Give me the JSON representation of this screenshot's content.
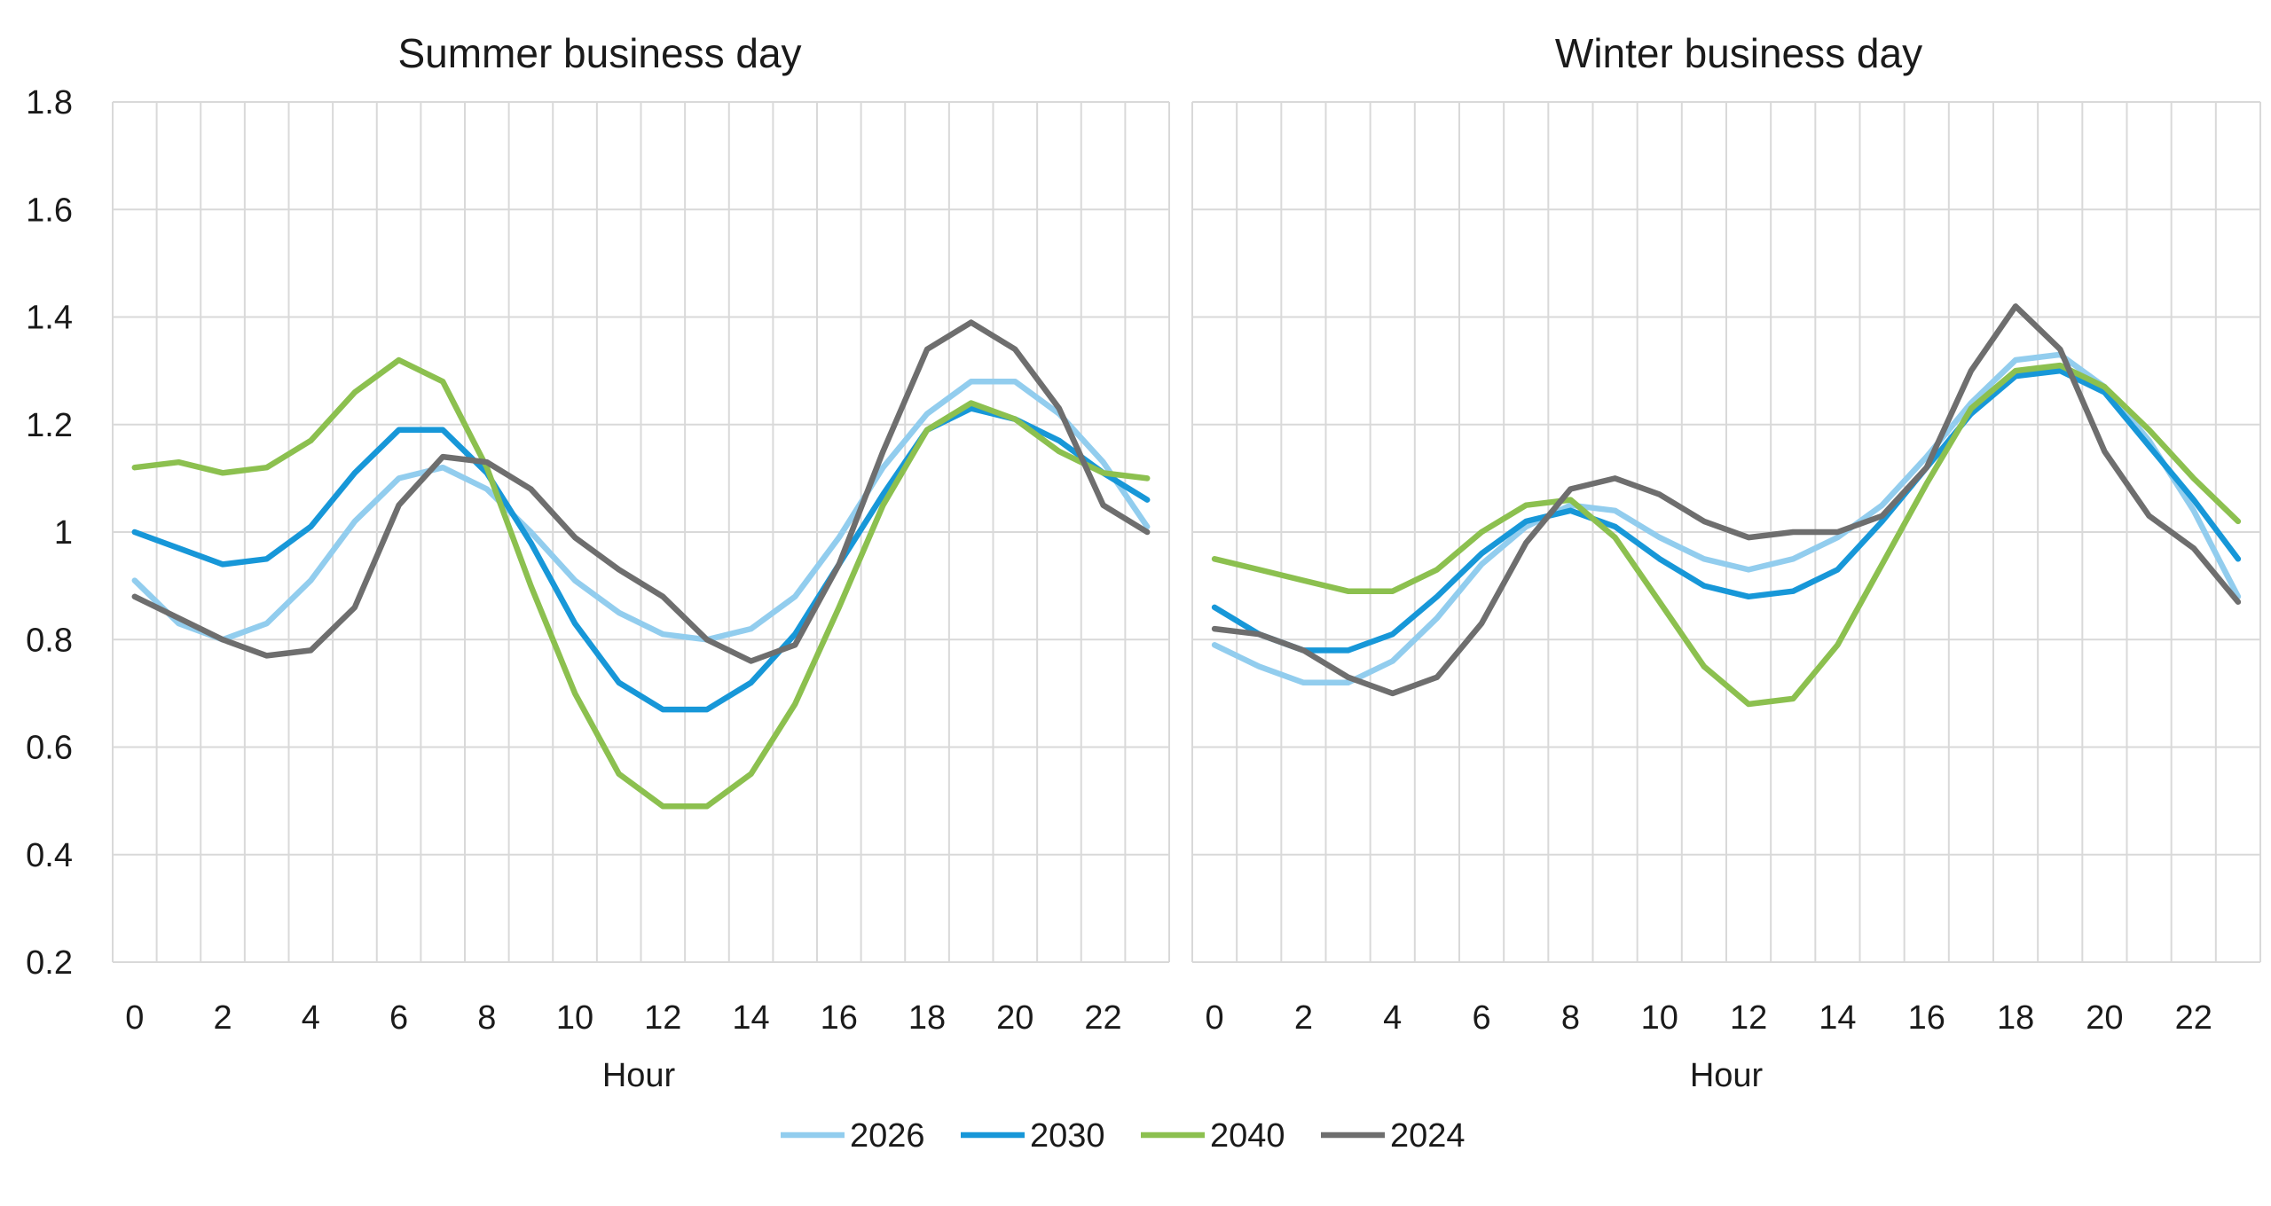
{
  "chart_data": [
    {
      "type": "line",
      "title": "Summer business day",
      "xlabel": "Hour",
      "ylabel": "",
      "xlim": [
        0,
        23
      ],
      "ylim": [
        0.2,
        1.8
      ],
      "y_ticks": [
        0.2,
        0.4,
        0.6,
        0.8,
        1.0,
        1.2,
        1.4,
        1.6,
        1.8
      ],
      "y_tick_labels": [
        "0.2",
        "0.4",
        "0.6",
        "0.8",
        "1",
        "1.2",
        "1.4",
        "1.6",
        "1.8"
      ],
      "x_tick_labels": [
        "0",
        "2",
        "4",
        "6",
        "8",
        "10",
        "12",
        "14",
        "16",
        "18",
        "20",
        "22"
      ],
      "grid": true,
      "x": [
        0,
        1,
        2,
        3,
        4,
        5,
        6,
        7,
        8,
        9,
        10,
        11,
        12,
        13,
        14,
        15,
        16,
        17,
        18,
        19,
        20,
        21,
        22,
        23
      ],
      "series": [
        {
          "name": "2026",
          "color": "#92cdee",
          "values": [
            0.91,
            0.83,
            0.8,
            0.83,
            0.91,
            1.02,
            1.1,
            1.12,
            1.08,
            1.0,
            0.91,
            0.85,
            0.81,
            0.8,
            0.82,
            0.88,
            0.99,
            1.12,
            1.22,
            1.28,
            1.28,
            1.22,
            1.13,
            1.01
          ]
        },
        {
          "name": "2030",
          "color": "#1797d8",
          "values": [
            1.0,
            0.97,
            0.94,
            0.95,
            1.01,
            1.11,
            1.19,
            1.19,
            1.11,
            0.98,
            0.83,
            0.72,
            0.67,
            0.67,
            0.72,
            0.81,
            0.94,
            1.07,
            1.19,
            1.23,
            1.21,
            1.17,
            1.11,
            1.06
          ]
        },
        {
          "name": "2040",
          "color": "#8cc04f",
          "values": [
            1.12,
            1.13,
            1.11,
            1.12,
            1.17,
            1.26,
            1.32,
            1.28,
            1.12,
            0.9,
            0.7,
            0.55,
            0.49,
            0.49,
            0.55,
            0.68,
            0.86,
            1.05,
            1.19,
            1.24,
            1.21,
            1.15,
            1.11,
            1.1
          ]
        },
        {
          "name": "2024",
          "color": "#6e6e6e",
          "values": [
            0.88,
            0.84,
            0.8,
            0.77,
            0.78,
            0.86,
            1.05,
            1.14,
            1.13,
            1.08,
            0.99,
            0.93,
            0.88,
            0.8,
            0.76,
            0.79,
            0.94,
            1.15,
            1.34,
            1.39,
            1.34,
            1.23,
            1.05,
            1.0
          ]
        }
      ]
    },
    {
      "type": "line",
      "title": "Winter business day",
      "xlabel": "Hour",
      "ylabel": "",
      "xlim": [
        0,
        23
      ],
      "ylim": [
        0.2,
        1.8
      ],
      "x_tick_labels": [
        "0",
        "2",
        "4",
        "6",
        "8",
        "10",
        "12",
        "14",
        "16",
        "18",
        "20",
        "22"
      ],
      "grid": true,
      "x": [
        0,
        1,
        2,
        3,
        4,
        5,
        6,
        7,
        8,
        9,
        10,
        11,
        12,
        13,
        14,
        15,
        16,
        17,
        18,
        19,
        20,
        21,
        22,
        23
      ],
      "series": [
        {
          "name": "2026",
          "color": "#92cdee",
          "values": [
            0.79,
            0.75,
            0.72,
            0.72,
            0.76,
            0.84,
            0.94,
            1.01,
            1.05,
            1.04,
            0.99,
            0.95,
            0.93,
            0.95,
            0.99,
            1.05,
            1.14,
            1.24,
            1.32,
            1.33,
            1.27,
            1.17,
            1.04,
            0.88
          ]
        },
        {
          "name": "2030",
          "color": "#1797d8",
          "values": [
            0.86,
            0.81,
            0.78,
            0.78,
            0.81,
            0.88,
            0.96,
            1.02,
            1.04,
            1.01,
            0.95,
            0.9,
            0.88,
            0.89,
            0.93,
            1.02,
            1.12,
            1.22,
            1.29,
            1.3,
            1.26,
            1.16,
            1.06,
            0.95
          ]
        },
        {
          "name": "2040",
          "color": "#8cc04f",
          "values": [
            0.95,
            0.93,
            0.91,
            0.89,
            0.89,
            0.93,
            1.0,
            1.05,
            1.06,
            0.99,
            0.87,
            0.75,
            0.68,
            0.69,
            0.79,
            0.94,
            1.09,
            1.23,
            1.3,
            1.31,
            1.27,
            1.19,
            1.1,
            1.02
          ]
        },
        {
          "name": "2024",
          "color": "#6e6e6e",
          "values": [
            0.82,
            0.81,
            0.78,
            0.73,
            0.7,
            0.73,
            0.83,
            0.98,
            1.08,
            1.1,
            1.07,
            1.02,
            0.99,
            1.0,
            1.0,
            1.03,
            1.12,
            1.3,
            1.42,
            1.34,
            1.15,
            1.03,
            0.97,
            0.87
          ]
        }
      ]
    }
  ],
  "legend": {
    "position": "bottom-center",
    "items": [
      {
        "name": "2026",
        "color": "#92cdee"
      },
      {
        "name": "2030",
        "color": "#1797d8"
      },
      {
        "name": "2040",
        "color": "#8cc04f"
      },
      {
        "name": "2024",
        "color": "#6e6e6e"
      }
    ]
  }
}
